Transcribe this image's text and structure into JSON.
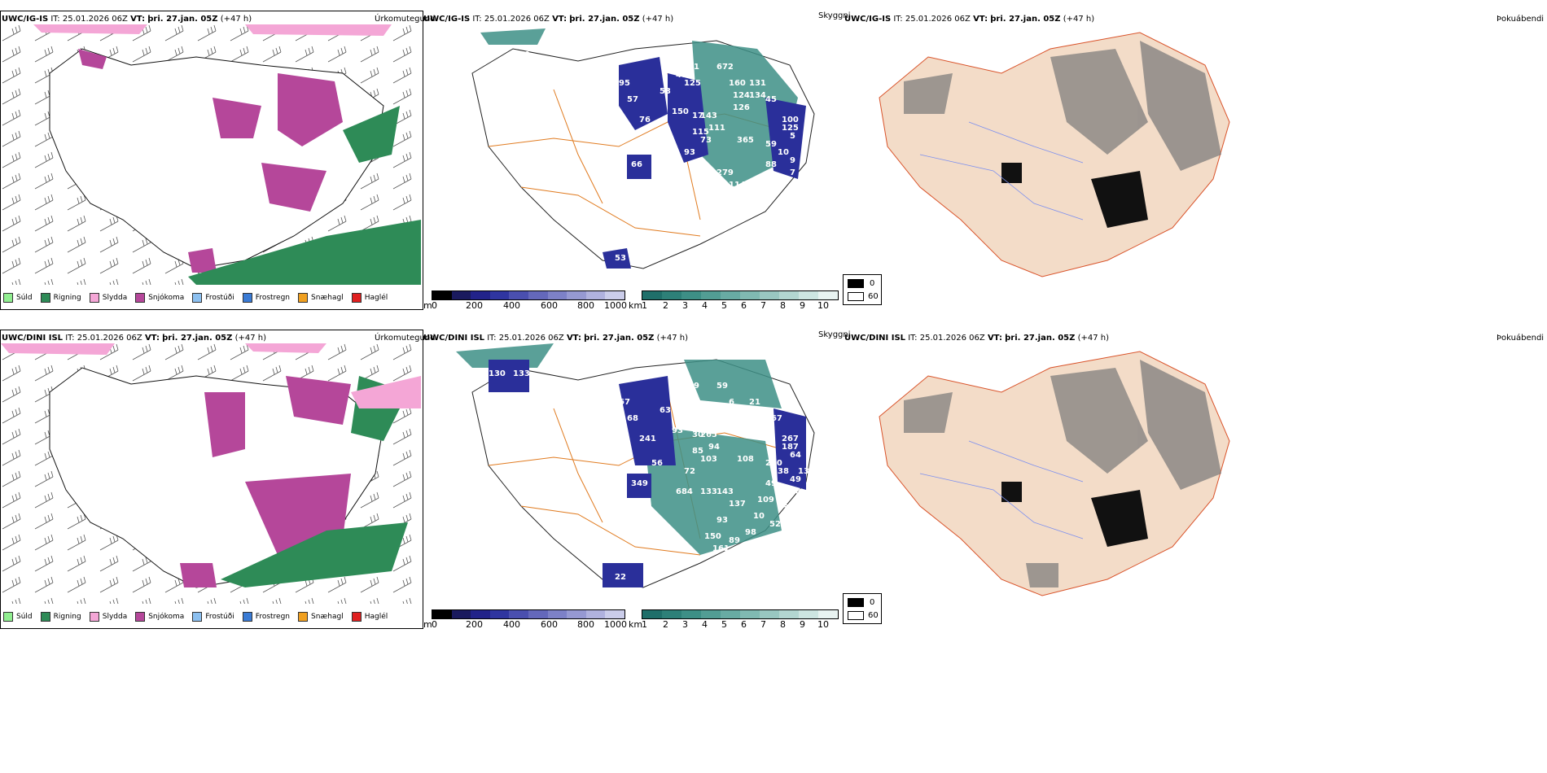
{
  "rows": [
    {
      "header": {
        "model": "UWC/IG-IS",
        "it": "IT: 25.01.2026 06Z",
        "vt_label": "VT:",
        "vt_value": "þri. 27.jan. 05Z",
        "lead": "(+47 h)"
      },
      "panel_titles": {
        "precip": "Úrkomutegund",
        "vis": "Skyggni",
        "fog": "Þokuábendi"
      },
      "vis_labels": [
        "35",
        "130",
        "95",
        "57",
        "53",
        "47",
        "81",
        "125",
        "76",
        "150",
        "17",
        "115",
        "285",
        "93",
        "73",
        "111",
        "66",
        "89",
        "65",
        "279",
        "114",
        "21",
        "82",
        "53",
        "672",
        "160",
        "131",
        "124",
        "134",
        "126",
        "143",
        "45",
        "100",
        "125",
        "365",
        "59",
        "10",
        "9",
        "88",
        "5",
        "7",
        "80",
        "7",
        "2"
      ]
    },
    {
      "header": {
        "model": "UWC/DINI ISL",
        "it": "IT: 25.01.2026 06Z",
        "vt_label": "VT:",
        "vt_value": "þri. 27.jan. 05Z",
        "lead": "(+47 h)"
      },
      "panel_titles": {
        "precip": "Úrkomutegund",
        "vis": "Skyggni",
        "fog": "Þokuábendi"
      },
      "vis_labels": [
        "130",
        "133",
        "67",
        "68",
        "63",
        "29",
        "49",
        "102",
        "241",
        "93",
        "30",
        "85",
        "56",
        "72",
        "103",
        "94",
        "349",
        "684",
        "133",
        "143",
        "137",
        "93",
        "150",
        "22",
        "59",
        "6",
        "21",
        "170",
        "37",
        "246",
        "265",
        "167",
        "267",
        "187",
        "108",
        "220",
        "38",
        "49",
        "49",
        "64",
        "88",
        "109",
        "95",
        "10",
        "52",
        "98",
        "89",
        "161",
        "141",
        "92",
        "47",
        "20",
        "136"
      ]
    }
  ],
  "precip_legend": [
    {
      "label": "Súld",
      "color": "#90ee90"
    },
    {
      "label": "Rigning",
      "color": "#2e8b57"
    },
    {
      "label": "Slydda",
      "color": "#f4a6d6"
    },
    {
      "label": "Snjókoma",
      "color": "#b5479a"
    },
    {
      "label": "Frostúði",
      "color": "#8cc0f0"
    },
    {
      "label": "Frostregn",
      "color": "#3a7bd5"
    },
    {
      "label": "Snæhagl",
      "color": "#f0a020"
    },
    {
      "label": "Haglél",
      "color": "#e02020"
    }
  ],
  "elev_bar": {
    "unit": "m",
    "ticks": [
      "0",
      "200",
      "400",
      "600",
      "800",
      "1000"
    ],
    "colors": [
      "#000",
      "#1a1a5e",
      "#22238a",
      "#2f35a0",
      "#4a4faf",
      "#6468bb",
      "#7d81c7",
      "#9699d2",
      "#b0b2de",
      "#cbcdea"
    ]
  },
  "vis_bar": {
    "unit": "km",
    "ticks": [
      "1",
      "2",
      "3",
      "4",
      "5",
      "6",
      "7",
      "8",
      "9",
      "10"
    ],
    "colors": [
      "#1f6f6a",
      "#2d8078",
      "#3d8f86",
      "#529d94",
      "#68aba3",
      "#80b9b2",
      "#99c7c1",
      "#b3d6d1",
      "#cde5e1",
      "#e8f3f1"
    ]
  },
  "fog_box": {
    "labels": [
      "0",
      "60"
    ]
  },
  "colors": {
    "snow": "#b5479a",
    "rain": "#2e8b57",
    "sleet": "#f4a6d6",
    "road": "#e07b20",
    "land_fog": "#f3dcc8",
    "vis_blue": "#2a2f9a",
    "vis_teal": "#3d8f86"
  }
}
